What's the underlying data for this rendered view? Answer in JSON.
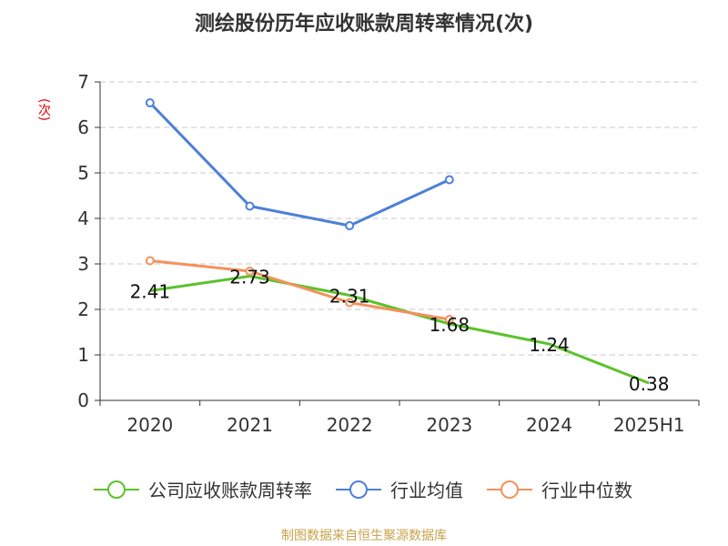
{
  "chart_data": {
    "type": "line",
    "title": "测绘股份历年应收账款周转率情况(次)",
    "ylabel": "(次)",
    "categories": [
      "2020",
      "2021",
      "2022",
      "2023",
      "2024",
      "2025H1"
    ],
    "ylim": [
      0,
      7
    ],
    "yticks": [
      "0",
      "1",
      "2",
      "3",
      "4",
      "5",
      "6",
      "7"
    ],
    "grid": true,
    "legend_position": "bottom",
    "series": [
      {
        "name": "公司应收账款周转率",
        "color": "#5cc22c",
        "values": [
          2.41,
          2.73,
          2.31,
          1.68,
          1.24,
          0.38
        ],
        "labels": [
          "2.41",
          "2.73",
          "2.31",
          "1.68",
          "1.24",
          "0.38"
        ],
        "show_markers": false
      },
      {
        "name": "行业均值",
        "color": "#4f7fd9",
        "values": [
          6.54,
          4.27,
          3.84,
          4.85,
          null,
          null
        ],
        "show_markers": true
      },
      {
        "name": "行业中位数",
        "color": "#f4915c",
        "values": [
          3.07,
          2.84,
          2.15,
          1.78,
          null,
          null
        ],
        "show_markers": true
      }
    ]
  },
  "footer": {
    "source": "制图数据来自恒生聚源数据库"
  }
}
